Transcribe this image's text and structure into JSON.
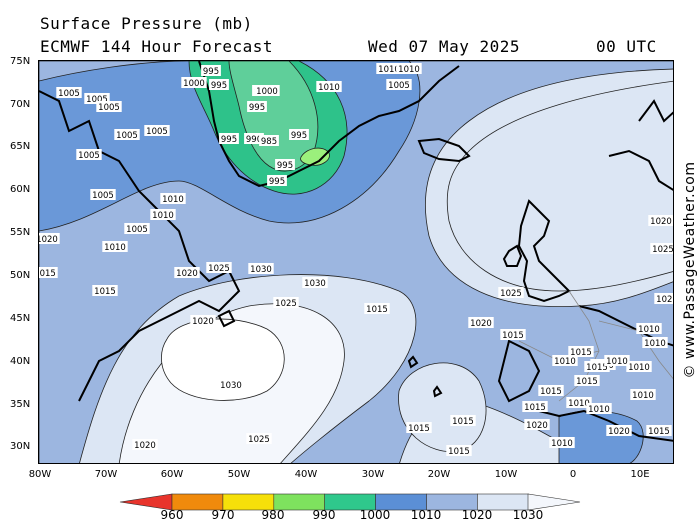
{
  "header": {
    "title_line1": "Surface Pressure (mb)",
    "title_line2": "ECMWF 144 Hour Forecast",
    "valid_date": "Wed 07 May 2025",
    "valid_time": "00 UTC"
  },
  "credit": "© www.PassageWeather.com",
  "axes": {
    "lat_labels": [
      "75N",
      "70N",
      "65N",
      "60N",
      "55N",
      "50N",
      "45N",
      "40N",
      "35N",
      "30N"
    ],
    "lon_labels": [
      "80W",
      "70W",
      "60W",
      "50W",
      "40W",
      "30W",
      "20W",
      "10W",
      "0",
      "10E"
    ]
  },
  "legend": {
    "colors": [
      "#e8342c",
      "#f08a0c",
      "#f6e00a",
      "#7ee25e",
      "#2fc88c",
      "#5b8fd6",
      "#9cb6e0",
      "#dce6f4",
      "#f4f7fc"
    ],
    "labels": [
      "960",
      "970",
      "980",
      "990",
      "1000",
      "1010",
      "1020",
      "1030"
    ]
  },
  "isobar_labels": [
    "995",
    "1000",
    "995",
    "995",
    "995",
    "990",
    "995",
    "995",
    "995",
    "985",
    "995",
    "1000",
    "1010",
    "1010",
    "1010",
    "1005",
    "1005",
    "1005",
    "1005",
    "1005",
    "1005",
    "1005",
    "1005",
    "1010",
    "1010",
    "1010",
    "1005",
    "1020",
    "1015",
    "1015",
    "1020",
    "1025",
    "1030",
    "1025",
    "1020",
    "1015",
    "1020",
    "1025",
    "1015",
    "1015",
    "1015",
    "1030",
    "1025",
    "1020",
    "1010",
    "1010",
    "1010",
    "1015",
    "1010",
    "1015",
    "1015",
    "1010",
    "1010",
    "1025",
    "1020",
    "1010",
    "1015",
    "1015",
    "1010",
    "1010",
    "1025",
    "1020",
    "1015",
    "1020",
    "1015",
    "1030",
    "1010"
  ],
  "colors": {
    "shade_990": "#5fcf9a",
    "shade_985": "#2ec28a",
    "shade_980": "#9bf07c",
    "shade_1000": "#6a98d8",
    "shade_1010": "#9cb6e0",
    "shade_1020": "#dce6f4",
    "shade_1030": "#f4f7fc",
    "coast": "#000000"
  }
}
